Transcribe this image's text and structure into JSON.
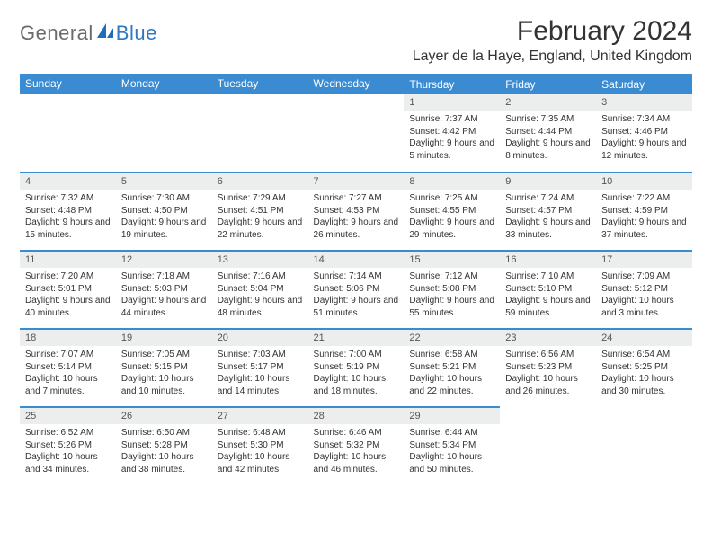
{
  "logo": {
    "text1": "General",
    "text2": "Blue",
    "color1": "#6b6b6b",
    "color2": "#2f79c2"
  },
  "title": "February 2024",
  "location": "Layer de la Haye, England, United Kingdom",
  "header_bg": "#3b8bd3",
  "dayhdr": [
    "Sunday",
    "Monday",
    "Tuesday",
    "Wednesday",
    "Thursday",
    "Friday",
    "Saturday"
  ],
  "weeks": [
    [
      null,
      null,
      null,
      null,
      {
        "n": "1",
        "sunrise": "7:37 AM",
        "sunset": "4:42 PM",
        "dl": "9 hours and 5 minutes."
      },
      {
        "n": "2",
        "sunrise": "7:35 AM",
        "sunset": "4:44 PM",
        "dl": "9 hours and 8 minutes."
      },
      {
        "n": "3",
        "sunrise": "7:34 AM",
        "sunset": "4:46 PM",
        "dl": "9 hours and 12 minutes."
      }
    ],
    [
      {
        "n": "4",
        "sunrise": "7:32 AM",
        "sunset": "4:48 PM",
        "dl": "9 hours and 15 minutes."
      },
      {
        "n": "5",
        "sunrise": "7:30 AM",
        "sunset": "4:50 PM",
        "dl": "9 hours and 19 minutes."
      },
      {
        "n": "6",
        "sunrise": "7:29 AM",
        "sunset": "4:51 PM",
        "dl": "9 hours and 22 minutes."
      },
      {
        "n": "7",
        "sunrise": "7:27 AM",
        "sunset": "4:53 PM",
        "dl": "9 hours and 26 minutes."
      },
      {
        "n": "8",
        "sunrise": "7:25 AM",
        "sunset": "4:55 PM",
        "dl": "9 hours and 29 minutes."
      },
      {
        "n": "9",
        "sunrise": "7:24 AM",
        "sunset": "4:57 PM",
        "dl": "9 hours and 33 minutes."
      },
      {
        "n": "10",
        "sunrise": "7:22 AM",
        "sunset": "4:59 PM",
        "dl": "9 hours and 37 minutes."
      }
    ],
    [
      {
        "n": "11",
        "sunrise": "7:20 AM",
        "sunset": "5:01 PM",
        "dl": "9 hours and 40 minutes."
      },
      {
        "n": "12",
        "sunrise": "7:18 AM",
        "sunset": "5:03 PM",
        "dl": "9 hours and 44 minutes."
      },
      {
        "n": "13",
        "sunrise": "7:16 AM",
        "sunset": "5:04 PM",
        "dl": "9 hours and 48 minutes."
      },
      {
        "n": "14",
        "sunrise": "7:14 AM",
        "sunset": "5:06 PM",
        "dl": "9 hours and 51 minutes."
      },
      {
        "n": "15",
        "sunrise": "7:12 AM",
        "sunset": "5:08 PM",
        "dl": "9 hours and 55 minutes."
      },
      {
        "n": "16",
        "sunrise": "7:10 AM",
        "sunset": "5:10 PM",
        "dl": "9 hours and 59 minutes."
      },
      {
        "n": "17",
        "sunrise": "7:09 AM",
        "sunset": "5:12 PM",
        "dl": "10 hours and 3 minutes."
      }
    ],
    [
      {
        "n": "18",
        "sunrise": "7:07 AM",
        "sunset": "5:14 PM",
        "dl": "10 hours and 7 minutes."
      },
      {
        "n": "19",
        "sunrise": "7:05 AM",
        "sunset": "5:15 PM",
        "dl": "10 hours and 10 minutes."
      },
      {
        "n": "20",
        "sunrise": "7:03 AM",
        "sunset": "5:17 PM",
        "dl": "10 hours and 14 minutes."
      },
      {
        "n": "21",
        "sunrise": "7:00 AM",
        "sunset": "5:19 PM",
        "dl": "10 hours and 18 minutes."
      },
      {
        "n": "22",
        "sunrise": "6:58 AM",
        "sunset": "5:21 PM",
        "dl": "10 hours and 22 minutes."
      },
      {
        "n": "23",
        "sunrise": "6:56 AM",
        "sunset": "5:23 PM",
        "dl": "10 hours and 26 minutes."
      },
      {
        "n": "24",
        "sunrise": "6:54 AM",
        "sunset": "5:25 PM",
        "dl": "10 hours and 30 minutes."
      }
    ],
    [
      {
        "n": "25",
        "sunrise": "6:52 AM",
        "sunset": "5:26 PM",
        "dl": "10 hours and 34 minutes."
      },
      {
        "n": "26",
        "sunrise": "6:50 AM",
        "sunset": "5:28 PM",
        "dl": "10 hours and 38 minutes."
      },
      {
        "n": "27",
        "sunrise": "6:48 AM",
        "sunset": "5:30 PM",
        "dl": "10 hours and 42 minutes."
      },
      {
        "n": "28",
        "sunrise": "6:46 AM",
        "sunset": "5:32 PM",
        "dl": "10 hours and 46 minutes."
      },
      {
        "n": "29",
        "sunrise": "6:44 AM",
        "sunset": "5:34 PM",
        "dl": "10 hours and 50 minutes."
      },
      null,
      null
    ]
  ]
}
